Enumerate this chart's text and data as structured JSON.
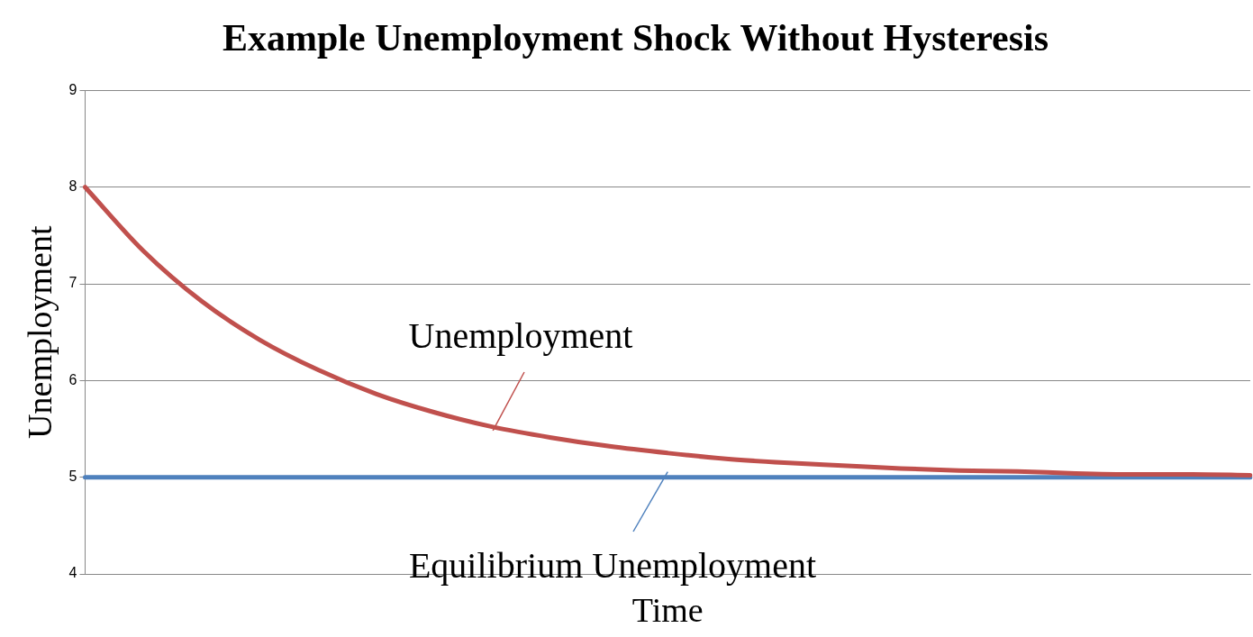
{
  "chart_data": {
    "type": "line",
    "title": "Example Unemployment Shock Without Hysteresis",
    "xlabel": "Time",
    "ylabel": "Unemployment",
    "categories": [
      null,
      null,
      null,
      null,
      null,
      null,
      null,
      null,
      null,
      null,
      null,
      null,
      null,
      null,
      null,
      null,
      null,
      null,
      null,
      null,
      null
    ],
    "series": [
      {
        "color": "#c0504d",
        "values": [
          8.0,
          7.34,
          6.82,
          6.42,
          6.11,
          5.86,
          5.67,
          5.52,
          5.41,
          5.32,
          5.25,
          5.19,
          5.15,
          5.12,
          5.09,
          5.07,
          5.06,
          5.04,
          5.03,
          5.03,
          5.02
        ]
      },
      {
        "color": "#4f81bd",
        "values": [
          5,
          5,
          5,
          5,
          5,
          5,
          5,
          5,
          5,
          5,
          5,
          5,
          5,
          5,
          5,
          5,
          5,
          5,
          5,
          5,
          5
        ]
      }
    ],
    "annotations": [
      "Unemployment",
      "Equilibrium Unemployment"
    ],
    "ylim": [
      4,
      9
    ],
    "yticks": [
      4,
      5,
      6,
      7,
      8,
      9
    ],
    "grid": "y",
    "legend": false,
    "marker": "none",
    "line_style": "solid"
  }
}
